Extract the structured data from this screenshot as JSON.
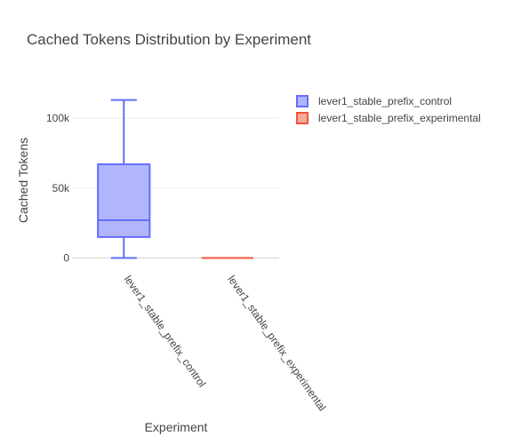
{
  "chart_data": {
    "type": "box",
    "title": "Cached Tokens Distribution by Experiment",
    "xlabel": "Experiment",
    "ylabel": "Cached Tokens",
    "ylim": [
      -6000,
      121000
    ],
    "yticks": [
      0,
      50000,
      100000
    ],
    "ytick_labels": [
      "0",
      "50k",
      "100k"
    ],
    "categories": [
      "lever1_stable_prefix_control",
      "lever1_stable_prefix_experimental"
    ],
    "legend_position": "top-right",
    "grid": true,
    "series": [
      {
        "name": "lever1_stable_prefix_control",
        "color": "#636efa",
        "fill": "#b1b6fc",
        "min": 0,
        "q1": 15000,
        "median": 27000,
        "q3": 67000,
        "max": 113000
      },
      {
        "name": "lever1_stable_prefix_experimental",
        "color": "#ef553b",
        "fill": "#f7a99c",
        "min": 0,
        "q1": 0,
        "median": 0,
        "q3": 0,
        "max": 0
      }
    ]
  }
}
